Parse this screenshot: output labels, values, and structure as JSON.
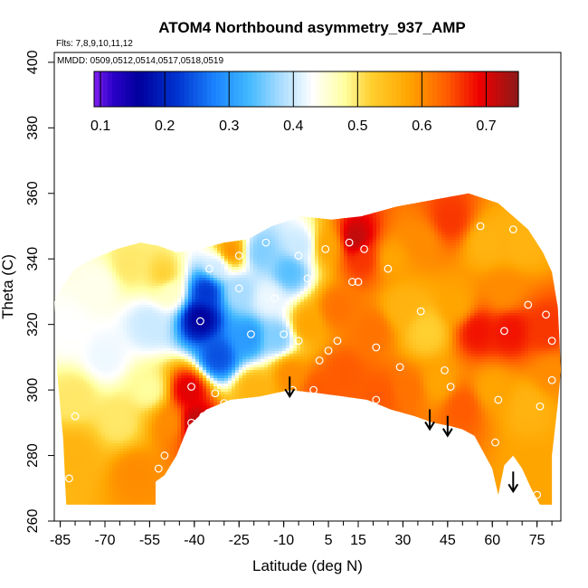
{
  "chart_data": {
    "type": "heatmap",
    "title": "ATOM4 Northbound asymmetry_937_AMP",
    "flights_label": "Flts: 7,8,9,10,11,12",
    "dates_label": "MMDD: 0509,0512,0514,0517,0518,0519",
    "xlabel": "Latitude (deg N)",
    "ylabel": "Theta (C)",
    "xlim": [
      -87,
      83
    ],
    "ylim": [
      260,
      403
    ],
    "x_ticks": [
      -85,
      -70,
      -55,
      -40,
      -25,
      -10,
      5,
      15,
      30,
      45,
      60,
      75
    ],
    "x_tick_labels": [
      "-85",
      "-70",
      "-55",
      "-40",
      "-25",
      "-10",
      "5",
      "15",
      "30",
      "45",
      "60",
      "75"
    ],
    "y_ticks": [
      260,
      280,
      300,
      320,
      340,
      360,
      380,
      400
    ],
    "y_tick_labels": [
      "260",
      "280",
      "300",
      "320",
      "340",
      "360",
      "380",
      "400"
    ],
    "colorbar": {
      "range": [
        0.09,
        0.75
      ],
      "ticks": [
        0.1,
        0.2,
        0.3,
        0.4,
        0.5,
        0.6,
        0.7
      ],
      "tick_labels": [
        "0.1",
        "0.2",
        "0.3",
        "0.4",
        "0.5",
        "0.6",
        "0.7"
      ],
      "stops": [
        {
          "v": 0.09,
          "color": "#7f1ff0"
        },
        {
          "v": 0.12,
          "color": "#2a00c8"
        },
        {
          "v": 0.16,
          "color": "#00009c"
        },
        {
          "v": 0.22,
          "color": "#0034d0"
        },
        {
          "v": 0.28,
          "color": "#1c86ff"
        },
        {
          "v": 0.33,
          "color": "#40b8ff"
        },
        {
          "v": 0.38,
          "color": "#a8dcff"
        },
        {
          "v": 0.43,
          "color": "#ffffff"
        },
        {
          "v": 0.48,
          "color": "#ffffa0"
        },
        {
          "v": 0.52,
          "color": "#ffd030"
        },
        {
          "v": 0.58,
          "color": "#ffa500"
        },
        {
          "v": 0.64,
          "color": "#ff5a00"
        },
        {
          "v": 0.69,
          "color": "#ee0000"
        },
        {
          "v": 0.75,
          "color": "#8c1a1a"
        }
      ]
    },
    "grid": false,
    "points": [
      {
        "lat": -84,
        "theta": 322
      },
      {
        "lat": -80,
        "theta": 292
      },
      {
        "lat": -82,
        "theta": 273
      },
      {
        "lat": -52,
        "theta": 276
      },
      {
        "lat": -50,
        "theta": 280
      },
      {
        "lat": -41,
        "theta": 301
      },
      {
        "lat": -41,
        "theta": 290
      },
      {
        "lat": -37,
        "theta": 292
      },
      {
        "lat": -38,
        "theta": 321
      },
      {
        "lat": -35,
        "theta": 337
      },
      {
        "lat": -33,
        "theta": 299
      },
      {
        "lat": -30,
        "theta": 296
      },
      {
        "lat": -25,
        "theta": 341
      },
      {
        "lat": -25,
        "theta": 331
      },
      {
        "lat": -22,
        "theta": 296
      },
      {
        "lat": -21,
        "theta": 317
      },
      {
        "lat": -16,
        "theta": 345
      },
      {
        "lat": -13,
        "theta": 328
      },
      {
        "lat": -10,
        "theta": 317
      },
      {
        "lat": -5,
        "theta": 341
      },
      {
        "lat": -5,
        "theta": 315
      },
      {
        "lat": -2,
        "theta": 334
      },
      {
        "lat": -7,
        "theta": 300
      },
      {
        "lat": 0,
        "theta": 300
      },
      {
        "lat": 2,
        "theta": 309
      },
      {
        "lat": 4,
        "theta": 343
      },
      {
        "lat": 5,
        "theta": 312
      },
      {
        "lat": 8,
        "theta": 315
      },
      {
        "lat": 12,
        "theta": 345
      },
      {
        "lat": 13,
        "theta": 333
      },
      {
        "lat": 15,
        "theta": 333
      },
      {
        "lat": 17,
        "theta": 343
      },
      {
        "lat": 21,
        "theta": 313
      },
      {
        "lat": 25,
        "theta": 337
      },
      {
        "lat": 29,
        "theta": 307
      },
      {
        "lat": 36,
        "theta": 324
      },
      {
        "lat": 44,
        "theta": 306
      },
      {
        "lat": 46,
        "theta": 301
      },
      {
        "lat": 56,
        "theta": 350
      },
      {
        "lat": 62,
        "theta": 297
      },
      {
        "lat": 61,
        "theta": 284
      },
      {
        "lat": 64,
        "theta": 318
      },
      {
        "lat": 67,
        "theta": 349
      },
      {
        "lat": 72,
        "theta": 326
      },
      {
        "lat": 75,
        "theta": 268
      },
      {
        "lat": 76,
        "theta": 295
      },
      {
        "lat": 78,
        "theta": 323
      },
      {
        "lat": 80,
        "theta": 303
      },
      {
        "lat": 80,
        "theta": 315
      },
      {
        "lat": 7,
        "theta": 292
      },
      {
        "lat": 17,
        "theta": 293
      },
      {
        "lat": 21,
        "theta": 297
      }
    ],
    "arrows": [
      {
        "lat": -8,
        "theta": 303
      },
      {
        "lat": 39,
        "theta": 293
      },
      {
        "lat": 45,
        "theta": 291
      },
      {
        "lat": 67,
        "theta": 274
      }
    ]
  }
}
